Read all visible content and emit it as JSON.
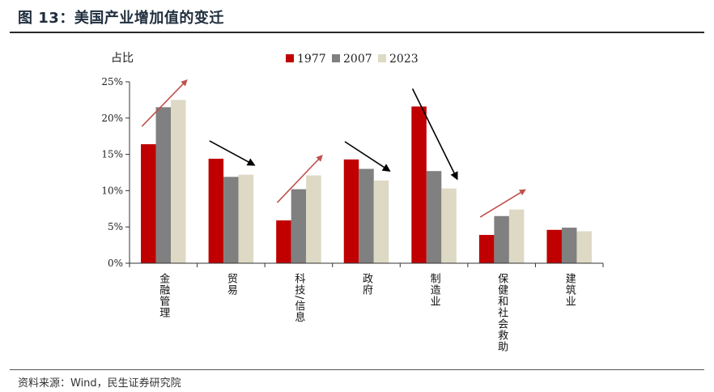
{
  "header": {
    "title": "图 13：美国产业增加值的变迁"
  },
  "footer": {
    "source": "资料来源：Wind，民生证券研究院"
  },
  "colors": {
    "s1977": "#c00000",
    "s2007": "#808080",
    "s2023": "#ddd9c4",
    "arrow_up": "#c0504d",
    "arrow_down": "#000000"
  },
  "chart_data": {
    "type": "bar",
    "ylabel": "占比",
    "ylim": [
      0,
      25
    ],
    "yticks": [
      "0%",
      "5%",
      "10%",
      "15%",
      "20%",
      "25%"
    ],
    "ytick_values": [
      0,
      5,
      10,
      15,
      20,
      25
    ],
    "categories": [
      "金融管理",
      "贸易",
      "科技/信息",
      "政府",
      "制造业",
      "保健和社会救助",
      "建筑业"
    ],
    "series": [
      {
        "name": "1977",
        "color": "#c00000",
        "values": [
          16.4,
          14.4,
          5.9,
          14.3,
          21.6,
          3.9,
          4.6
        ]
      },
      {
        "name": "2007",
        "color": "#808080",
        "values": [
          21.5,
          11.9,
          10.2,
          13.0,
          12.7,
          6.5,
          4.9
        ]
      },
      {
        "name": "2023",
        "color": "#ddd9c4",
        "values": [
          22.5,
          12.2,
          12.1,
          11.4,
          10.3,
          7.4,
          4.4
        ]
      }
    ],
    "trend_arrows": [
      "up",
      "down",
      "up",
      "down",
      "down",
      "up",
      "none"
    ],
    "legend_position": "top-center",
    "grid": false
  }
}
